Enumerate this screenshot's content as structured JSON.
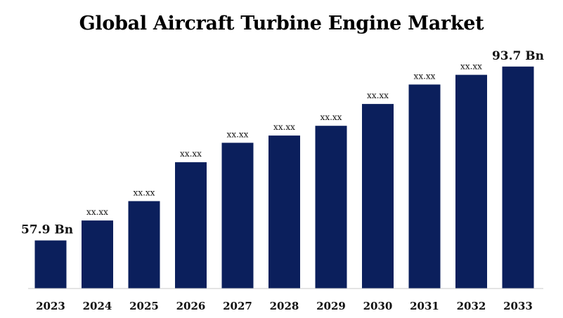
{
  "chart_data": {
    "type": "bar",
    "title": "Global Aircraft Turbine Engine Market",
    "xlabel": "",
    "ylabel": "",
    "categories": [
      "2023",
      "2024",
      "2025",
      "2026",
      "2027",
      "2028",
      "2029",
      "2030",
      "2031",
      "2032",
      "2033"
    ],
    "values": [
      57.9,
      62.0,
      66.0,
      74.0,
      78.0,
      79.5,
      81.5,
      86.0,
      90.0,
      92.0,
      93.7
    ],
    "data_labels": [
      "57.9 Bn",
      "xx.xx",
      "xx.xx",
      "xx.xx",
      "xx.xx",
      "xx.xx",
      "xx.xx",
      "xx.xx",
      "xx.xx",
      "xx.xx",
      "93.7 Bn"
    ],
    "ylim": [
      48,
      97
    ],
    "grid": false,
    "legend": "none",
    "bar_color": "#0b1f5c",
    "axis_color": "#c8c8c8"
  }
}
